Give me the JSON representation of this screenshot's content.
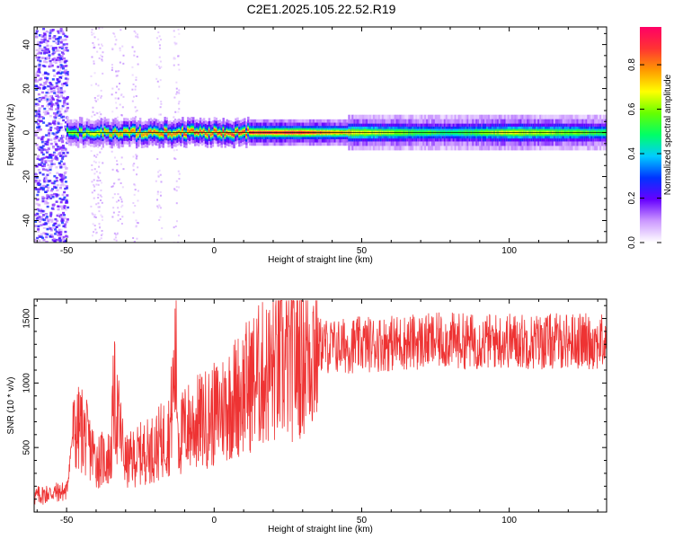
{
  "title": "C2E1.2025.105.22.52.R19",
  "chart_data": [
    {
      "type": "heatmap",
      "xlabel": "Height of straight line (km)",
      "ylabel": "Frequency (Hz)",
      "xlim": [
        -61,
        133
      ],
      "ylim": [
        -50,
        48
      ],
      "xticks": [
        -50,
        0,
        50,
        100
      ],
      "yticks": [
        -40,
        -20,
        0,
        20,
        40
      ],
      "colorbar": {
        "label": "Normalized spectral amplitude",
        "range": [
          0.0,
          0.97
        ],
        "ticks": [
          "0.0",
          "0.2",
          "0.4",
          "0.6",
          "0.8"
        ],
        "colors": [
          "#ffffff",
          "#cc99ff",
          "#6600ff",
          "#0033ff",
          "#00ccff",
          "#00ff66",
          "#66ff00",
          "#ffff00",
          "#ff9900",
          "#ff3333",
          "#ff0066"
        ]
      },
      "description_points": {
        "ridge_x": [
          -50,
          -30,
          -10,
          10,
          30,
          50,
          80,
          100,
          133
        ],
        "ridge_freq": [
          0,
          0,
          0,
          0,
          0,
          0,
          0,
          0,
          0
        ],
        "ridge_amplitude": [
          0.6,
          0.8,
          0.85,
          0.9,
          0.9,
          0.7,
          0.5,
          0.7,
          0.55
        ]
      }
    },
    {
      "type": "line",
      "xlabel": "Height of straight line (km)",
      "ylabel": "SNR (10 * v/v)",
      "xlim": [
        -61,
        133
      ],
      "ylim": [
        0,
        1650
      ],
      "xticks": [
        -50,
        0,
        50,
        100
      ],
      "yticks": [
        500,
        1000,
        1500
      ],
      "series": [
        {
          "color": "#ee3333",
          "x": [
            -61,
            -55,
            -50,
            -48,
            -45,
            -40,
            -35,
            -34,
            -30,
            -25,
            -20,
            -15,
            -13,
            -12,
            -10,
            -5,
            0,
            5,
            10,
            15,
            20,
            25,
            30,
            35,
            40,
            50,
            60,
            70,
            80,
            90,
            100,
            110,
            120,
            130,
            133
          ],
          "y": [
            120,
            150,
            160,
            600,
            650,
            400,
            420,
            900,
            380,
            450,
            500,
            620,
            1200,
            550,
            650,
            700,
            750,
            850,
            950,
            1050,
            1100,
            1150,
            1250,
            1300,
            1280,
            1300,
            1310,
            1320,
            1330,
            1320,
            1330,
            1320,
            1330,
            1320,
            1310
          ]
        }
      ]
    }
  ]
}
